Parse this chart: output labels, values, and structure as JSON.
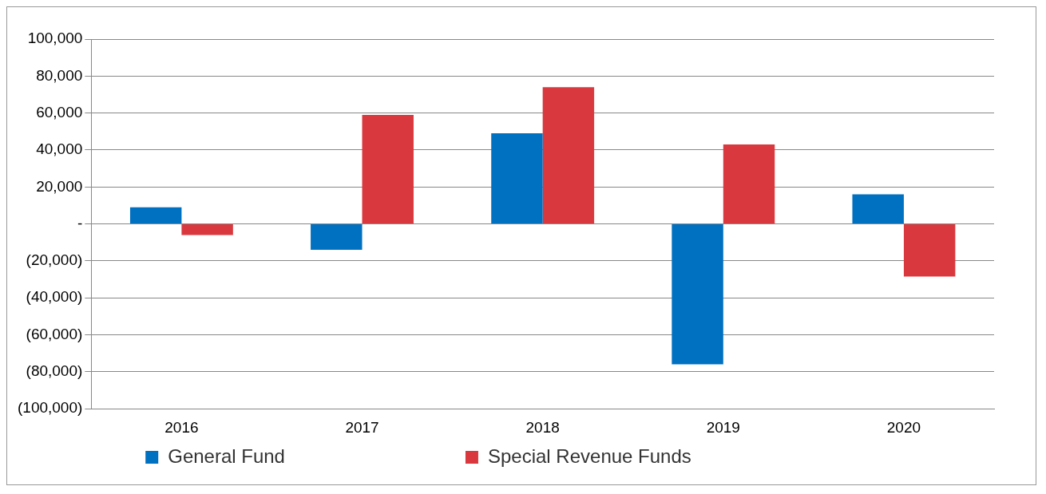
{
  "chart_data": {
    "type": "bar",
    "categories": [
      "2016",
      "2017",
      "2018",
      "2019",
      "2020"
    ],
    "series": [
      {
        "name": "General Fund",
        "color": "#0070c0",
        "values": [
          9000,
          -14000,
          49000,
          -76000,
          16000
        ]
      },
      {
        "name": "Special Revenue Funds",
        "color": "#d9393e",
        "values": [
          -6000,
          59000,
          74000,
          43000,
          -28500
        ]
      }
    ],
    "ylim": [
      -100000,
      100000
    ],
    "yticks": [
      {
        "value": -100000,
        "label": "(100,000)"
      },
      {
        "value": -80000,
        "label": "(80,000)"
      },
      {
        "value": -60000,
        "label": "(60,000)"
      },
      {
        "value": -40000,
        "label": "(40,000)"
      },
      {
        "value": -20000,
        "label": "(20,000)"
      },
      {
        "value": 0,
        "label": "-"
      },
      {
        "value": 20000,
        "label": "20,000"
      },
      {
        "value": 40000,
        "label": "40,000"
      },
      {
        "value": 60000,
        "label": "60,000"
      },
      {
        "value": 80000,
        "label": "80,000"
      },
      {
        "value": 100000,
        "label": "100,000"
      }
    ],
    "grid": "y",
    "legend": "bottom"
  }
}
